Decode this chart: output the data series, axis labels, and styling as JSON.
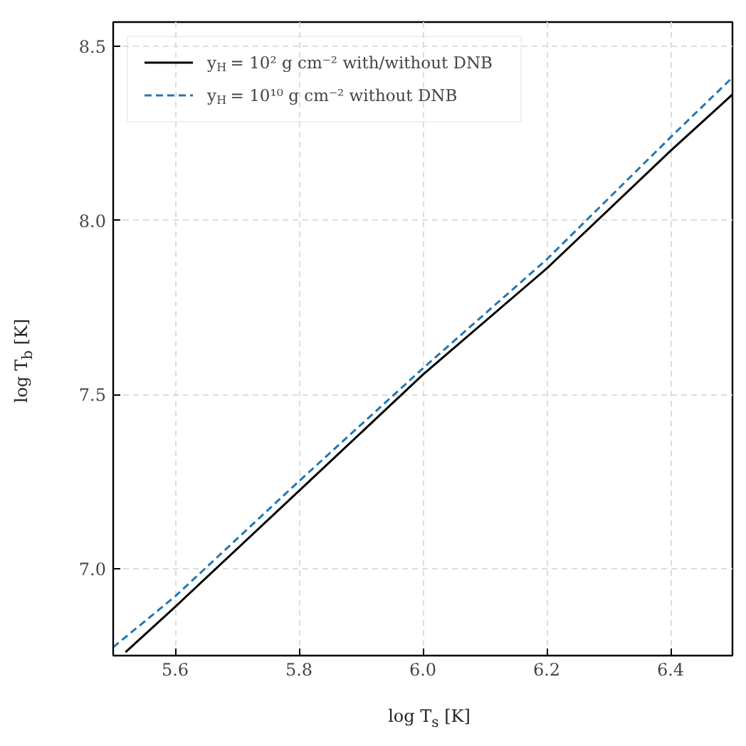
{
  "chart_data": {
    "type": "line",
    "xlabel": "log T$_{s}$ [K]",
    "ylabel": "log T$_{b}$ [K]",
    "xlim": [
      5.5,
      6.5
    ],
    "ylim": [
      6.75,
      8.57
    ],
    "xticks": [
      5.6,
      5.8,
      {
        "value": 6.0,
        "label": "6.0"
      },
      6.2,
      6.4
    ],
    "yticks": [
      {
        "value": 7.0,
        "label": "7.0"
      },
      7.5,
      {
        "value": 8.0,
        "label": "8.0"
      },
      8.5
    ],
    "grid": true,
    "legend": "top left",
    "series": [
      {
        "name": "y$_{H}$ = 10² g cm⁻² with/without DNB",
        "color": "#000000",
        "line_style": "solid",
        "x": [
          5.52,
          5.6,
          5.8,
          6.0,
          6.2,
          6.4,
          6.5
        ],
        "values": [
          6.76,
          6.89,
          7.223,
          7.557,
          7.862,
          8.2,
          8.362
        ]
      },
      {
        "name": "y$_{H}$ = 10¹⁰ g cm⁻² without DNB",
        "color": "#1f77b4",
        "line_style": "dashed",
        "x": [
          5.5,
          5.6,
          5.8,
          6.0,
          6.2,
          6.4,
          6.5
        ],
        "values": [
          6.774,
          6.92,
          7.251,
          7.575,
          7.888,
          8.239,
          8.411
        ]
      }
    ]
  }
}
